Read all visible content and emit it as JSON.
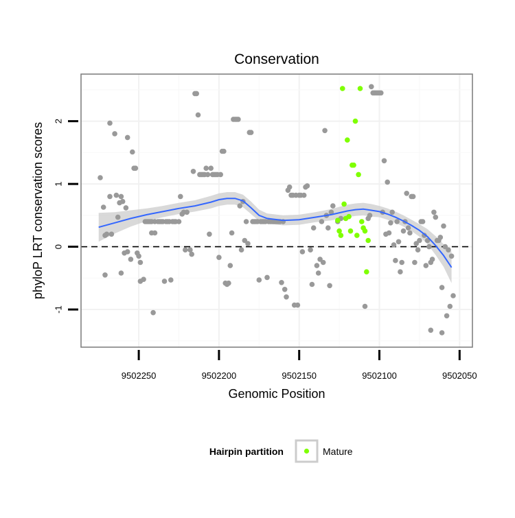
{
  "chart_data": {
    "type": "scatter",
    "title": "Conservation",
    "xlabel": "Genomic Position",
    "ylabel": "phyloP LRT conservation scores",
    "x_reversed": true,
    "xlim": [
      9502286,
      9502042
    ],
    "ylim": [
      -1.6,
      2.75
    ],
    "x_ticks": [
      9502250,
      9502200,
      9502150,
      9502100,
      9502050
    ],
    "x_tick_labels": [
      "9502250",
      "9502200",
      "9502150",
      "9502100",
      "9502050"
    ],
    "y_ticks": [
      -1,
      0,
      1,
      2
    ],
    "y_tick_labels": [
      "-1",
      "0",
      "1",
      "2"
    ],
    "reference_line": {
      "y": 0,
      "style": "dashed",
      "color": "#000000"
    },
    "legend": {
      "title": "Hairpin partition",
      "position": "bottom",
      "entries": [
        {
          "label": "Mature",
          "color": "#7fff00"
        }
      ]
    },
    "colors": {
      "other": "#999999",
      "mature": "#7fff00",
      "smooth": "#3366ff",
      "band": "#cccccc"
    },
    "series": [
      {
        "name": "",
        "color": "#999999",
        "points": [
          [
            9502274,
            1.1
          ],
          [
            9502272,
            0.63
          ],
          [
            9502271,
            0.18
          ],
          [
            9502271,
            -0.45
          ],
          [
            9502270,
            0.2
          ],
          [
            9502268,
            0.8
          ],
          [
            9502268,
            1.97
          ],
          [
            9502267,
            0.2
          ],
          [
            9502265,
            1.8
          ],
          [
            9502264,
            0.82
          ],
          [
            9502263,
            0.47
          ],
          [
            9502262,
            0.7
          ],
          [
            9502261,
            -0.42
          ],
          [
            9502261,
            0.8
          ],
          [
            9502260,
            0.72
          ],
          [
            9502259,
            -0.1
          ],
          [
            9502258,
            0.62
          ],
          [
            9502257,
            -0.08
          ],
          [
            9502257,
            1.74
          ],
          [
            9502255,
            -0.2
          ],
          [
            9502254,
            1.51
          ],
          [
            9502253,
            1.25
          ],
          [
            9502252,
            1.25
          ],
          [
            9502251,
            -0.1
          ],
          [
            9502250,
            -0.15
          ],
          [
            9502249,
            -0.25
          ],
          [
            9502249,
            -0.55
          ],
          [
            9502247,
            -0.52
          ],
          [
            9502246,
            0.4
          ],
          [
            9502245,
            0.4
          ],
          [
            9502244,
            0.4
          ],
          [
            9502243,
            0.4
          ],
          [
            9502242,
            0.4
          ],
          [
            9502242,
            0.22
          ],
          [
            9502241,
            -1.05
          ],
          [
            9502240,
            0.4
          ],
          [
            9502240,
            0.22
          ],
          [
            9502238,
            0.4
          ],
          [
            9502237,
            0.4
          ],
          [
            9502236,
            0.4
          ],
          [
            9502235,
            0.4
          ],
          [
            9502234,
            -0.55
          ],
          [
            9502233,
            0.4
          ],
          [
            9502232,
            0.4
          ],
          [
            9502231,
            0.4
          ],
          [
            9502230,
            -0.53
          ],
          [
            9502229,
            0.4
          ],
          [
            9502228,
            0.4
          ],
          [
            9502227,
            0.4
          ],
          [
            9502225,
            0.4
          ],
          [
            9502224,
            0.8
          ],
          [
            9502223,
            0.52
          ],
          [
            9502222,
            0.55
          ],
          [
            9502221,
            -0.05
          ],
          [
            9502220,
            0.55
          ],
          [
            9502218,
            -0.05
          ],
          [
            9502217,
            -0.12
          ],
          [
            9502216,
            1.2
          ],
          [
            9502215,
            2.44
          ],
          [
            9502214,
            2.44
          ],
          [
            9502213,
            2.1
          ],
          [
            9502212,
            1.15
          ],
          [
            9502211,
            1.15
          ],
          [
            9502210,
            1.15
          ],
          [
            9502209,
            1.15
          ],
          [
            9502208,
            1.25
          ],
          [
            9502207,
            1.15
          ],
          [
            9502206,
            0.2
          ],
          [
            9502205,
            1.25
          ],
          [
            9502204,
            1.15
          ],
          [
            9502203,
            1.15
          ],
          [
            9502202,
            1.15
          ],
          [
            9502201,
            1.15
          ],
          [
            9502200,
            -0.17
          ],
          [
            9502199,
            1.15
          ],
          [
            9502198,
            1.52
          ],
          [
            9502197,
            1.52
          ],
          [
            9502196,
            -0.58
          ],
          [
            9502195,
            -0.6
          ],
          [
            9502194,
            -0.58
          ],
          [
            9502193,
            -0.3
          ],
          [
            9502192,
            0.22
          ],
          [
            9502191,
            2.03
          ],
          [
            9502190,
            2.03
          ],
          [
            9502189,
            2.03
          ],
          [
            9502188,
            2.03
          ],
          [
            9502187,
            0.65
          ],
          [
            9502186,
            -0.05
          ],
          [
            9502185,
            0.72
          ],
          [
            9502184,
            0.1
          ],
          [
            9502183,
            0.4
          ],
          [
            9502182,
            0.05
          ],
          [
            9502181,
            1.82
          ],
          [
            9502180,
            1.82
          ],
          [
            9502179,
            0.4
          ],
          [
            9502178,
            0.4
          ],
          [
            9502177,
            0.4
          ],
          [
            9502176,
            0.4
          ],
          [
            9502175,
            -0.53
          ],
          [
            9502174,
            0.4
          ],
          [
            9502173,
            0.4
          ],
          [
            9502172,
            0.4
          ],
          [
            9502171,
            0.4
          ],
          [
            9502170,
            -0.49
          ],
          [
            9502169,
            0.4
          ],
          [
            9502168,
            0.4
          ],
          [
            9502167,
            0.4
          ],
          [
            9502166,
            0.4
          ],
          [
            9502165,
            0.4
          ],
          [
            9502164,
            0.4
          ],
          [
            9502163,
            0.4
          ],
          [
            9502162,
            0.4
          ],
          [
            9502161,
            -0.57
          ],
          [
            9502160,
            0.4
          ],
          [
            9502159,
            -0.68
          ],
          [
            9502158,
            -0.8
          ],
          [
            9502157,
            0.9
          ],
          [
            9502156,
            0.95
          ],
          [
            9502155,
            0.82
          ],
          [
            9502154,
            0.82
          ],
          [
            9502153,
            -0.93
          ],
          [
            9502152,
            0.82
          ],
          [
            9502151,
            -0.93
          ],
          [
            9502150,
            0.82
          ],
          [
            9502149,
            0.82
          ],
          [
            9502148,
            -0.08
          ],
          [
            9502147,
            0.82
          ],
          [
            9502146,
            0.95
          ],
          [
            9502145,
            0.97
          ],
          [
            9502143,
            -0.05
          ],
          [
            9502142,
            -0.6
          ],
          [
            9502141,
            0.3
          ],
          [
            9502139,
            -0.3
          ],
          [
            9502138,
            -0.42
          ],
          [
            9502137,
            -0.2
          ],
          [
            9502136,
            0.4
          ],
          [
            9502135,
            -0.25
          ],
          [
            9502134,
            1.85
          ],
          [
            9502133,
            0.5
          ],
          [
            9502132,
            0.3
          ],
          [
            9502131,
            -0.62
          ],
          [
            9502130,
            0.55
          ],
          [
            9502129,
            0.65
          ],
          [
            9502126,
            0.4
          ],
          [
            9502124,
            0.45
          ],
          [
            9502109,
            -0.95
          ],
          [
            9502107,
            0.45
          ],
          [
            9502106,
            0.5
          ],
          [
            9502105,
            2.55
          ],
          [
            9502104,
            2.45
          ],
          [
            9502103,
            2.45
          ],
          [
            9502102,
            2.45
          ],
          [
            9502101,
            2.45
          ],
          [
            9502100,
            2.45
          ],
          [
            9502099,
            2.45
          ],
          [
            9502098,
            0.55
          ],
          [
            9502097,
            1.37
          ],
          [
            9502096,
            0.2
          ],
          [
            9502095,
            1.03
          ],
          [
            9502094,
            0.22
          ],
          [
            9502093,
            0.38
          ],
          [
            9502092,
            0.55
          ],
          [
            9502091,
            0.03
          ],
          [
            9502090,
            -0.22
          ],
          [
            9502089,
            0.4
          ],
          [
            9502088,
            0.08
          ],
          [
            9502087,
            -0.4
          ],
          [
            9502086,
            -0.25
          ],
          [
            9502085,
            0.25
          ],
          [
            9502084,
            0.4
          ],
          [
            9502083,
            0.85
          ],
          [
            9502082,
            0.3
          ],
          [
            9502081,
            0.22
          ],
          [
            9502080,
            0.8
          ],
          [
            9502079,
            0.8
          ],
          [
            9502078,
            -0.25
          ],
          [
            9502077,
            0.05
          ],
          [
            9502076,
            -0.05
          ],
          [
            9502075,
            0.1
          ],
          [
            9502074,
            0.4
          ],
          [
            9502073,
            0.4
          ],
          [
            9502072,
            0.18
          ],
          [
            9502071,
            -0.3
          ],
          [
            9502070,
            0.1
          ],
          [
            9502069,
            0.0
          ],
          [
            9502068,
            -0.25
          ],
          [
            9502067,
            -0.2
          ],
          [
            9502066,
            0.55
          ],
          [
            9502065,
            0.47
          ],
          [
            9502064,
            0.1
          ],
          [
            9502063,
            0.1
          ],
          [
            9502062,
            0.15
          ],
          [
            9502061,
            -0.65
          ],
          [
            9502060,
            0.33
          ],
          [
            9502059,
            0.0
          ],
          [
            9502058,
            -1.1
          ],
          [
            9502057,
            -0.05
          ],
          [
            9502056,
            -0.95
          ],
          [
            9502055,
            -0.15
          ],
          [
            9502054,
            -0.78
          ],
          [
            9502068,
            -1.33
          ],
          [
            9502061,
            -1.37
          ]
        ]
      },
      {
        "name": "Mature",
        "color": "#7fff00",
        "points": [
          [
            9502126,
            0.42
          ],
          [
            9502125,
            0.25
          ],
          [
            9502124,
            0.18
          ],
          [
            9502123,
            2.52
          ],
          [
            9502122,
            0.68
          ],
          [
            9502121,
            0.45
          ],
          [
            9502120,
            1.7
          ],
          [
            9502119,
            0.48
          ],
          [
            9502118,
            0.25
          ],
          [
            9502117,
            1.3
          ],
          [
            9502116,
            1.3
          ],
          [
            9502115,
            2.0
          ],
          [
            9502114,
            0.18
          ],
          [
            9502113,
            1.15
          ],
          [
            9502112,
            2.52
          ],
          [
            9502111,
            0.4
          ],
          [
            9502110,
            0.3
          ],
          [
            9502109,
            0.25
          ],
          [
            9502108,
            -0.4
          ],
          [
            9502107,
            0.1
          ]
        ]
      }
    ],
    "smooth_line": {
      "x": [
        9502275,
        9502265,
        9502255,
        9502245,
        9502235,
        9502225,
        9502215,
        9502205,
        9502200,
        9502195,
        9502190,
        9502185,
        9502180,
        9502175,
        9502170,
        9502160,
        9502150,
        9502140,
        9502130,
        9502120,
        9502115,
        9502110,
        9502105,
        9502100,
        9502095,
        9502090,
        9502085,
        9502080,
        9502075,
        9502070,
        9502065,
        9502060,
        9502055
      ],
      "y": [
        0.31,
        0.38,
        0.45,
        0.51,
        0.56,
        0.61,
        0.65,
        0.71,
        0.75,
        0.77,
        0.77,
        0.73,
        0.62,
        0.5,
        0.45,
        0.42,
        0.43,
        0.47,
        0.51,
        0.57,
        0.59,
        0.6,
        0.58,
        0.56,
        0.52,
        0.47,
        0.41,
        0.34,
        0.26,
        0.16,
        0.02,
        -0.14,
        -0.33
      ],
      "se": [
        0.23,
        0.17,
        0.13,
        0.1,
        0.09,
        0.09,
        0.09,
        0.1,
        0.1,
        0.1,
        0.1,
        0.1,
        0.1,
        0.09,
        0.08,
        0.08,
        0.08,
        0.08,
        0.09,
        0.1,
        0.1,
        0.1,
        0.1,
        0.09,
        0.09,
        0.09,
        0.09,
        0.09,
        0.1,
        0.12,
        0.15,
        0.18,
        0.25
      ]
    }
  }
}
